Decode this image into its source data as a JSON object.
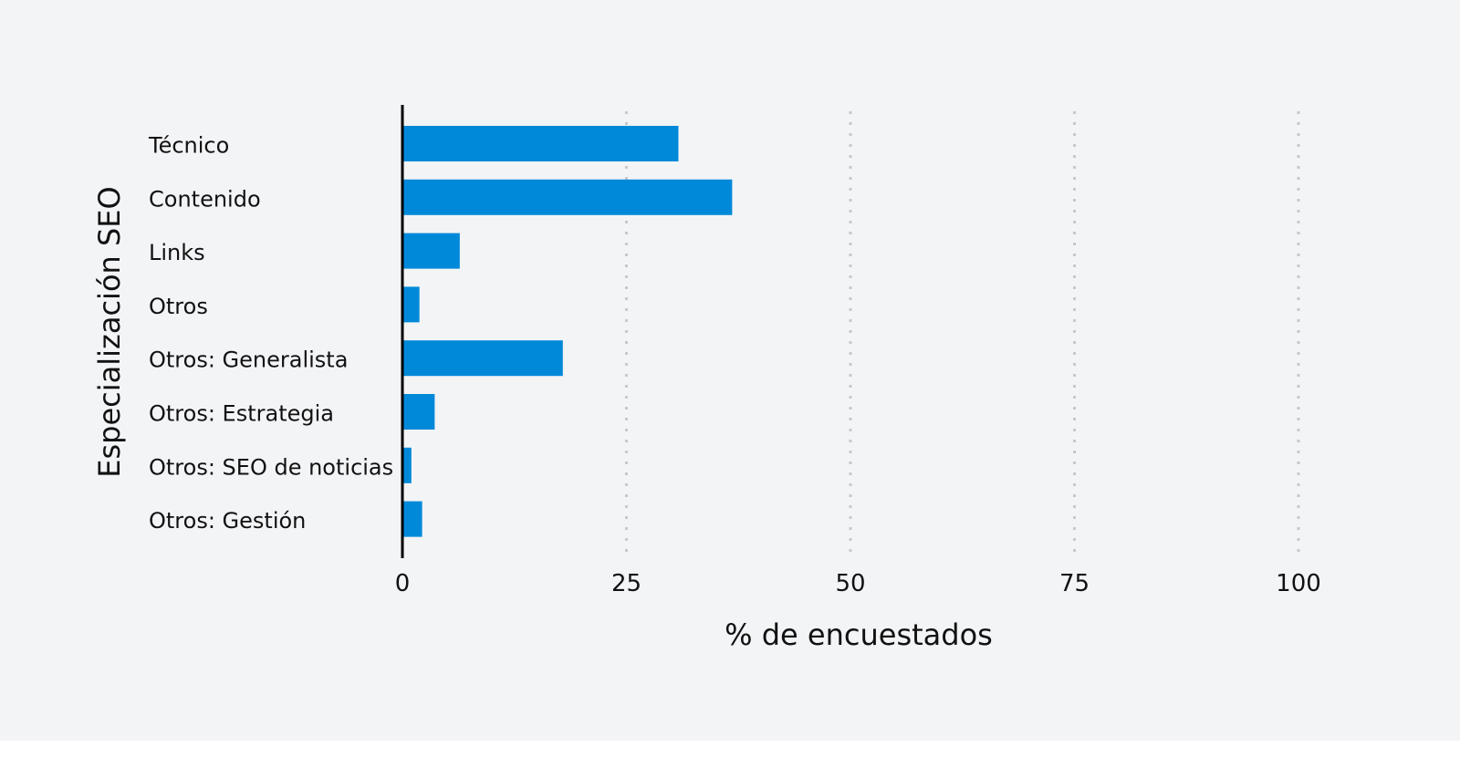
{
  "chart_data": {
    "type": "bar",
    "orientation": "horizontal",
    "categories": [
      "Técnico",
      "Contenido",
      "Links",
      "Otros",
      "Otros: Generalista",
      "Otros: Estrategia",
      "Otros: SEO de noticias",
      "Otros: Gestión"
    ],
    "values": [
      30.8,
      36.8,
      6.4,
      1.9,
      17.9,
      3.6,
      1.0,
      2.2
    ],
    "xlabel": "% de encuestados",
    "ylabel": "Especialización SEO",
    "xlim": [
      0,
      100
    ],
    "xticks": [
      "0",
      "25",
      "50",
      "75",
      "100"
    ],
    "grid": "vertical dotted",
    "bar_color": "#0089d9",
    "background": "#f3f4f6"
  }
}
